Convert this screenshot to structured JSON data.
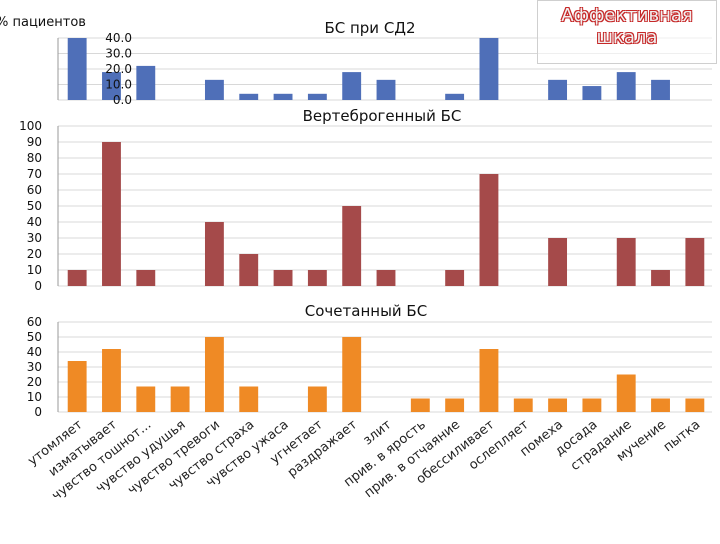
{
  "ylabel": "% пациентов",
  "badge": {
    "line1": "Аффективная",
    "line2": "шкала"
  },
  "colors": {
    "blue": "#4f6fb8",
    "red": "#a54a4a",
    "orange": "#ef8a25"
  },
  "categories": [
    "утомляет",
    "изматывает",
    "чувство тошнот...",
    "чувство удушья",
    "чувство тревоги",
    "чувство страха",
    "чувство ужаса",
    "угнетает",
    "раздражает",
    "злит",
    "прив. в ярость",
    "прив. в отчаяние",
    "обессиливает",
    "ослепляет",
    "помеха",
    "досада",
    "страдание",
    "мучение",
    "пытка"
  ],
  "chart_data": [
    {
      "type": "bar",
      "title": "БС при СД2",
      "ylim": [
        0,
        40
      ],
      "ticks": [
        "0.0",
        "10.0",
        "20.0",
        "30.0",
        "40.0"
      ],
      "tick_values": [
        0,
        10,
        20,
        30,
        40
      ],
      "categories_ref": "categories",
      "values": [
        40,
        18,
        22,
        0,
        13,
        4,
        4,
        4,
        18,
        13,
        0,
        4,
        40,
        0,
        13,
        9,
        18,
        13,
        0
      ],
      "series_color": "blue"
    },
    {
      "type": "bar",
      "title": "Вертеброгенный БС",
      "ylim": [
        0,
        100
      ],
      "ticks": [
        "0",
        "10",
        "20",
        "30",
        "40",
        "50",
        "60",
        "70",
        "80",
        "90",
        "100"
      ],
      "tick_values": [
        0,
        10,
        20,
        30,
        40,
        50,
        60,
        70,
        80,
        90,
        100
      ],
      "categories_ref": "categories",
      "values": [
        10,
        90,
        10,
        0,
        40,
        20,
        10,
        10,
        50,
        10,
        0,
        10,
        70,
        0,
        30,
        0,
        30,
        10,
        30
      ],
      "series_color": "red"
    },
    {
      "type": "bar",
      "title": "Сочетанный БС",
      "ylim": [
        0,
        60
      ],
      "ticks": [
        "0",
        "10",
        "20",
        "30",
        "40",
        "50",
        "60"
      ],
      "tick_values": [
        0,
        10,
        20,
        30,
        40,
        50,
        60
      ],
      "categories_ref": "categories",
      "values": [
        34,
        42,
        17,
        17,
        50,
        17,
        0,
        17,
        50,
        0,
        9,
        9,
        42,
        9,
        9,
        9,
        25,
        9,
        9
      ],
      "series_color": "orange"
    }
  ]
}
